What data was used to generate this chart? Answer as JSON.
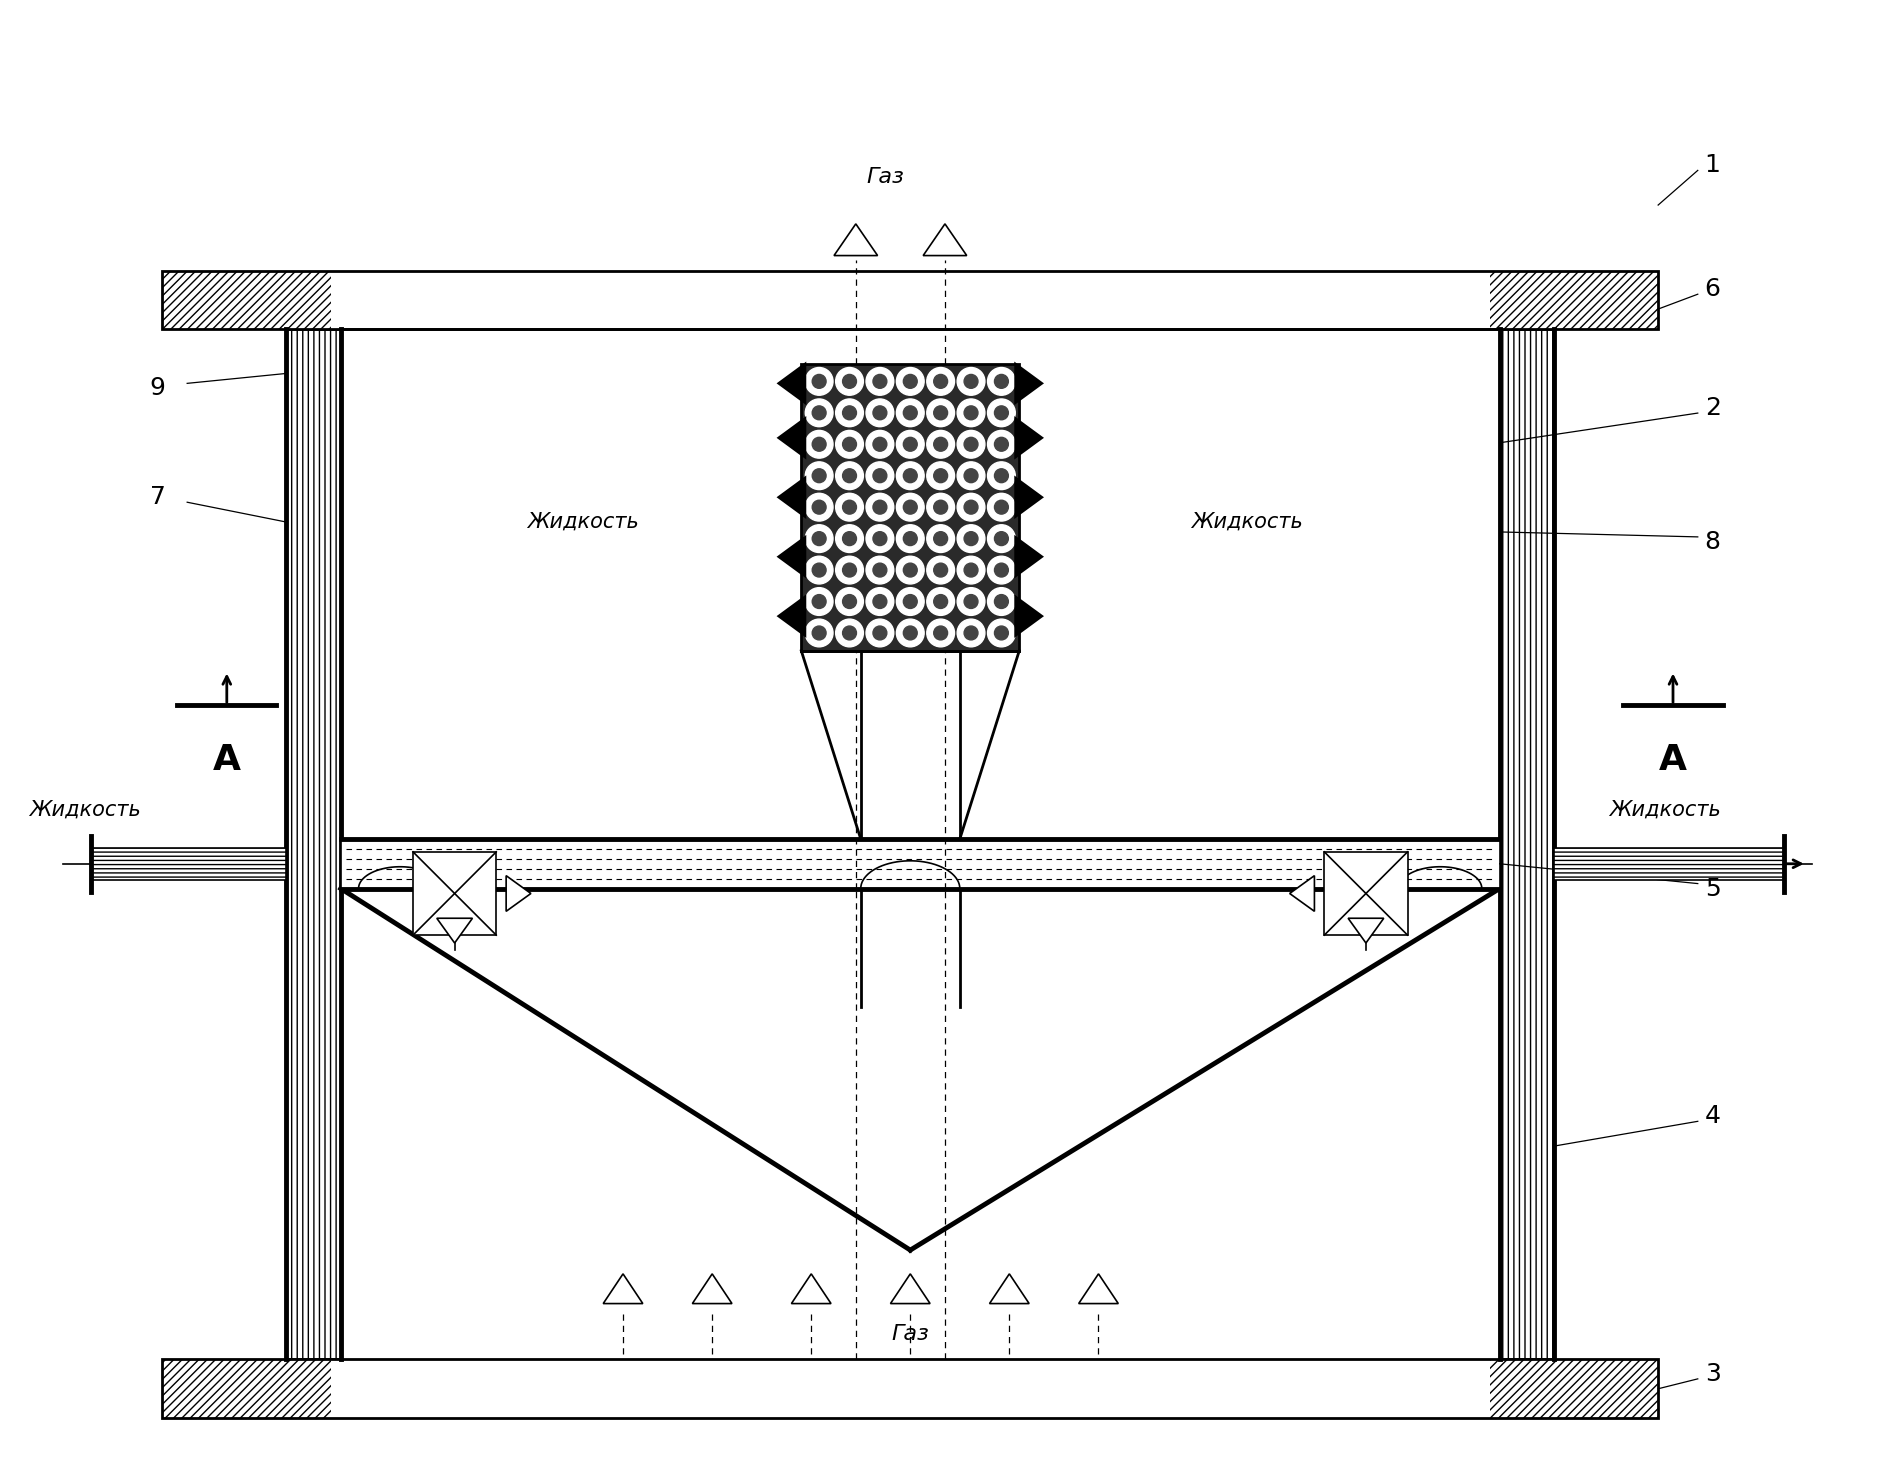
{
  "bg_color": "#ffffff",
  "line_color": "#000000",
  "fig_width": 18.79,
  "fig_height": 14.7,
  "labels": {
    "gaz_top": "Газ",
    "gaz_bottom": "Газ",
    "zhid_left_in": "Жидкость",
    "zhid_right_out": "Жидкость",
    "zhid_center_left": "Жидкость",
    "zhid_center_right": "Жидкость",
    "A_left": "А",
    "A_right": "А",
    "num1": "1",
    "num2": "2",
    "num3": "3",
    "num4": "4",
    "num5": "5",
    "num6": "6",
    "num7": "7",
    "num8": "8",
    "num9": "9"
  }
}
